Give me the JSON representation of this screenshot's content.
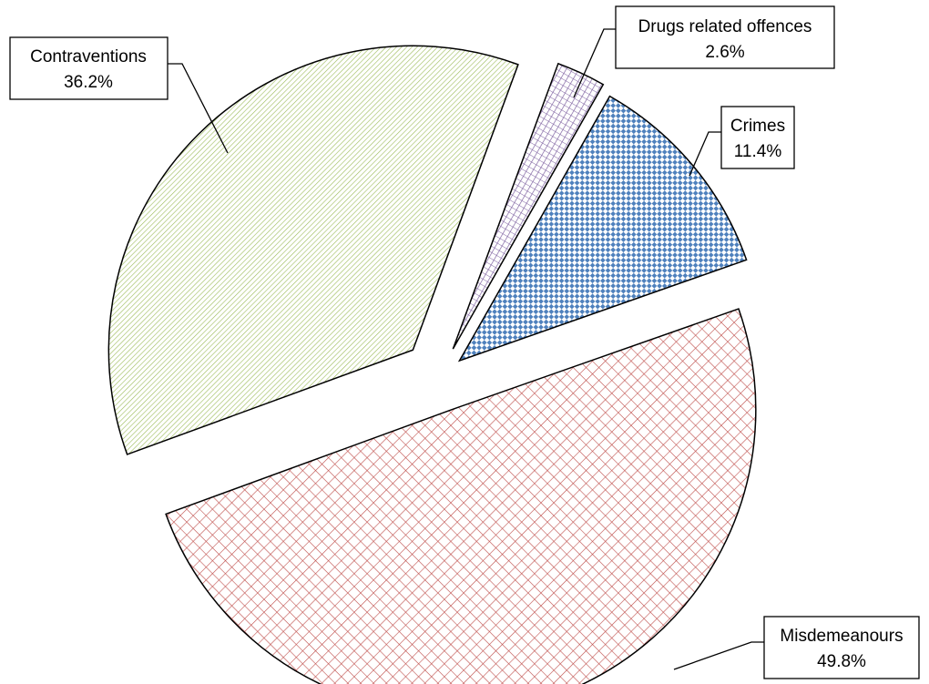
{
  "chart_data": {
    "type": "pie",
    "title": "",
    "slices": [
      {
        "label": "Crimes",
        "value": 11.4,
        "value_label": "11.4%",
        "color": "#4F81BD",
        "pattern": "checker"
      },
      {
        "label": "Misdemeanours",
        "value": 49.8,
        "value_label": "49.8%",
        "color": "#C0504D",
        "pattern": "diagonal-cross"
      },
      {
        "label": "Contraventions",
        "value": 36.2,
        "value_label": "36.2%",
        "color": "#9BBB59",
        "pattern": "dense-diagonal"
      },
      {
        "label": "Drugs related offences",
        "value": 2.6,
        "value_label": "2.6%",
        "color": "#8064A2",
        "pattern": "lattice"
      }
    ],
    "exploded": true,
    "legend": "none",
    "labels": "callouts-with-leader-lines"
  }
}
